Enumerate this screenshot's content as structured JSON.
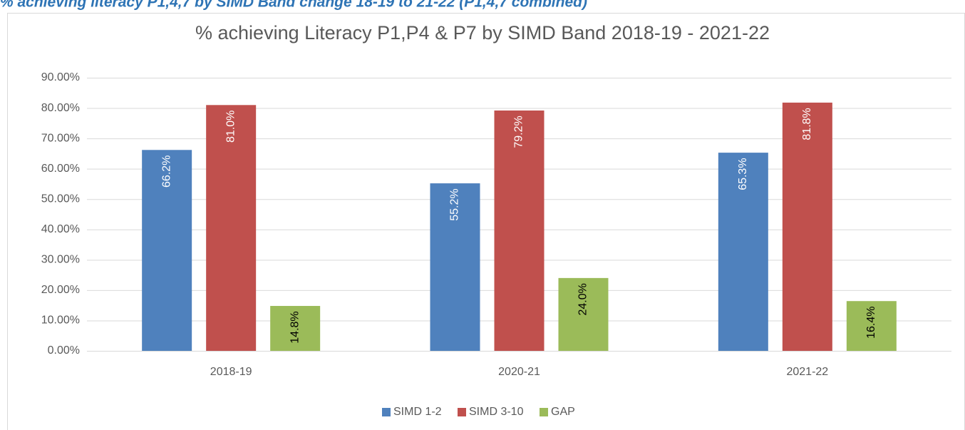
{
  "header": {
    "title": "% achieving literacy P1,4,7 by SIMD Band change 18-19 to 21-22 (P1,4,7 combined)"
  },
  "chart_data": {
    "type": "bar",
    "title": "% achieving Literacy P1,P4 & P7 by SIMD Band 2018-19 - 2021-22",
    "categories": [
      "2018-19",
      "2020-21",
      "2021-22"
    ],
    "series": [
      {
        "name": "SIMD 1-2",
        "color": "#4f81bd",
        "values": [
          66.2,
          55.2,
          65.3
        ],
        "value_labels": [
          "66.2%",
          "55.2%",
          "65.3%"
        ]
      },
      {
        "name": "SIMD 3-10",
        "color": "#c0504d",
        "values": [
          81.0,
          79.2,
          81.8
        ],
        "value_labels": [
          "81.0%",
          "79.2%",
          "81.8%"
        ]
      },
      {
        "name": "GAP",
        "color": "#9bbb59",
        "values": [
          14.8,
          24.0,
          16.4
        ],
        "value_labels": [
          "14.8%",
          "24.0%",
          "16.4%"
        ]
      }
    ],
    "ylim": [
      0,
      90
    ],
    "yticks": [
      {
        "value": 0,
        "label": "0.00%"
      },
      {
        "value": 10,
        "label": "10.00%"
      },
      {
        "value": 20,
        "label": "20.00%"
      },
      {
        "value": 30,
        "label": "30.00%"
      },
      {
        "value": 40,
        "label": "40.00%"
      },
      {
        "value": 50,
        "label": "50.00%"
      },
      {
        "value": 60,
        "label": "60.00%"
      },
      {
        "value": 70,
        "label": "70.00%"
      },
      {
        "value": 80,
        "label": "80.00%"
      },
      {
        "value": 90,
        "label": "90.00%"
      }
    ],
    "grid": true,
    "legend": "bottom"
  }
}
